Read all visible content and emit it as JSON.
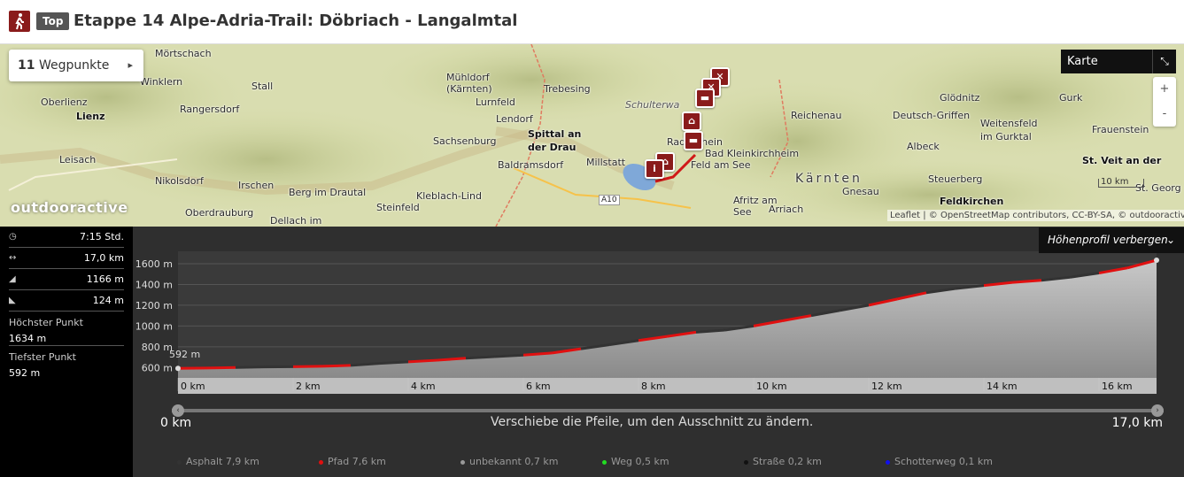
{
  "header": {
    "category_icon": "hiking-icon",
    "badge": "Top",
    "title": "Etappe 14 Alpe-Adria-Trail: Döbriach - Langalmtal"
  },
  "map": {
    "waypoints_count": "11",
    "waypoints_label": "Wegpunkte",
    "layer_label": "Karte",
    "zoom_in": "+",
    "zoom_out": "-",
    "scale": "10 km",
    "brand": "outdooractive",
    "attribution": "Leaflet | © OpenStreetMap contributors, CC-BY-SA, © outdooractive.com",
    "places": [
      "Mörtschach",
      "Winklern",
      "Stall",
      "Mühldorf (Kärnten)",
      "Lurnfeld",
      "Trebesing",
      "Oberlienz",
      "Lienz",
      "Rangersdorf",
      "Lendorf",
      "Spittal an der Drau",
      "Sachsenburg",
      "Leisach",
      "Baldramsdorf",
      "Millstatt",
      "Nikolsdorf",
      "Irschen",
      "Berg im Drautal",
      "Kleblach-Lind",
      "Steinfeld",
      "Oberdrauburg",
      "Dellach im",
      "Afritz am See",
      "Arriach",
      "Radenthein",
      "Bad Kleinkirchheim",
      "Feld am See",
      "Reichenau",
      "Glödnitz",
      "Gurk",
      "Deutsch-Griffen",
      "Weitensfeld im Gurktal",
      "Frauenstein",
      "Albeck",
      "Gnesau",
      "Steuerberg",
      "Feldkirchen",
      "St. Veit an der",
      "St. Georg",
      "Kärnten",
      "Schulterwa",
      "Kärnten",
      "A10"
    ]
  },
  "stats": {
    "duration": "7:15 Std.",
    "distance": "17,0 km",
    "ascent": "1166 m",
    "descent": "124 m",
    "highest_label": "Höchster Punkt",
    "highest_value": "1634 m",
    "lowest_label": "Tiefster Punkt",
    "lowest_value": "592 m"
  },
  "profile": {
    "hide_label": "Höhenprofil verbergen",
    "range_start": "0 km",
    "range_end": "17,0 km",
    "hint": "Verschiebe die Pfeile, um den Ausschnitt zu ändern.",
    "start_elev_label": "592 m",
    "end_elev_label": "1634 m"
  },
  "chart_data": {
    "type": "area",
    "title": "",
    "xlabel": "",
    "ylabel": "",
    "x_unit": "km",
    "y_unit": "m",
    "xlim": [
      0,
      17.0
    ],
    "ylim": [
      500,
      1634
    ],
    "x_ticks": [
      0,
      2,
      4,
      6,
      8,
      10,
      12,
      14,
      16
    ],
    "x_tick_labels": [
      "0 km",
      "2 km",
      "4 km",
      "6 km",
      "8 km",
      "10 km",
      "12 km",
      "14 km",
      "16 km"
    ],
    "y_ticks": [
      600,
      800,
      1000,
      1200,
      1400,
      1600
    ],
    "y_tick_labels": [
      "600 m",
      "800 m",
      "1000 m",
      "1200 m",
      "1400 m",
      "1600 m"
    ],
    "x": [
      0,
      0.5,
      1.0,
      1.5,
      2.0,
      2.5,
      3.0,
      3.5,
      4.0,
      4.5,
      5.0,
      5.5,
      6.0,
      6.5,
      7.0,
      7.5,
      8.0,
      8.5,
      9.0,
      9.5,
      10.0,
      10.5,
      11.0,
      11.5,
      12.0,
      12.5,
      13.0,
      13.5,
      14.0,
      14.5,
      15.0,
      15.5,
      16.0,
      16.5,
      17.0
    ],
    "elevation": [
      592,
      595,
      600,
      605,
      608,
      612,
      620,
      640,
      655,
      670,
      690,
      705,
      720,
      740,
      780,
      820,
      860,
      900,
      940,
      960,
      1000,
      1050,
      1100,
      1150,
      1200,
      1260,
      1320,
      1360,
      1390,
      1420,
      1440,
      1470,
      1510,
      1560,
      1634
    ],
    "legend": [
      {
        "name": "Asphalt",
        "value": "7,9 km",
        "color": "#333333"
      },
      {
        "name": "Pfad",
        "value": "7,6 km",
        "color": "#e01010"
      },
      {
        "name": "unbekannt",
        "value": "0,7 km",
        "color": "#999999"
      },
      {
        "name": "Weg",
        "value": "0,5 km",
        "color": "#22dd22"
      },
      {
        "name": "Straße",
        "value": "0,2 km",
        "color": "#111111"
      },
      {
        "name": "Schotterweg",
        "value": "0,1 km",
        "color": "#1010ee"
      }
    ]
  }
}
